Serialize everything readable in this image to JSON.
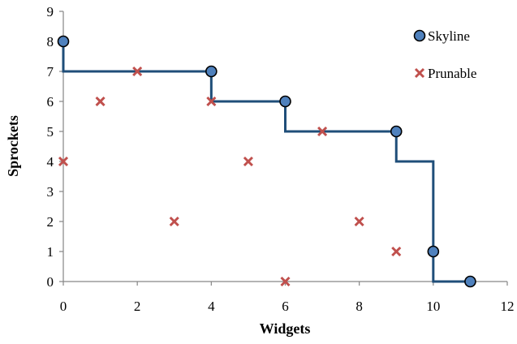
{
  "chart_data": {
    "type": "scatter",
    "title": "",
    "xlabel": "Widgets",
    "ylabel": "Sprockets",
    "xlim": [
      0,
      12
    ],
    "ylim": [
      0,
      9
    ],
    "x_ticks": [
      "0",
      "2",
      "4",
      "6",
      "8",
      "10",
      "12"
    ],
    "y_ticks": [
      "0",
      "1",
      "2",
      "3",
      "4",
      "5",
      "6",
      "7",
      "8",
      "9"
    ],
    "grid": false,
    "legend_position": "top-right",
    "series": [
      {
        "name": "Skyline",
        "marker": "circle",
        "connected": "step",
        "color": "#1F4E79",
        "fill": "#4F81BD",
        "points": [
          {
            "x": 0,
            "y": 8
          },
          {
            "x": 4,
            "y": 7
          },
          {
            "x": 6,
            "y": 6
          },
          {
            "x": 9,
            "y": 5
          },
          {
            "x": 10,
            "y": 1
          },
          {
            "x": 11,
            "y": 0
          }
        ]
      },
      {
        "name": "Prunable",
        "marker": "x",
        "connected": "none",
        "color": "#C0504D",
        "points": [
          {
            "x": 0,
            "y": 4
          },
          {
            "x": 1,
            "y": 6
          },
          {
            "x": 2,
            "y": 7
          },
          {
            "x": 3,
            "y": 2
          },
          {
            "x": 4,
            "y": 6
          },
          {
            "x": 5,
            "y": 4
          },
          {
            "x": 6,
            "y": 0
          },
          {
            "x": 7,
            "y": 5
          },
          {
            "x": 8,
            "y": 2
          },
          {
            "x": 9,
            "y": 1
          }
        ]
      }
    ]
  }
}
